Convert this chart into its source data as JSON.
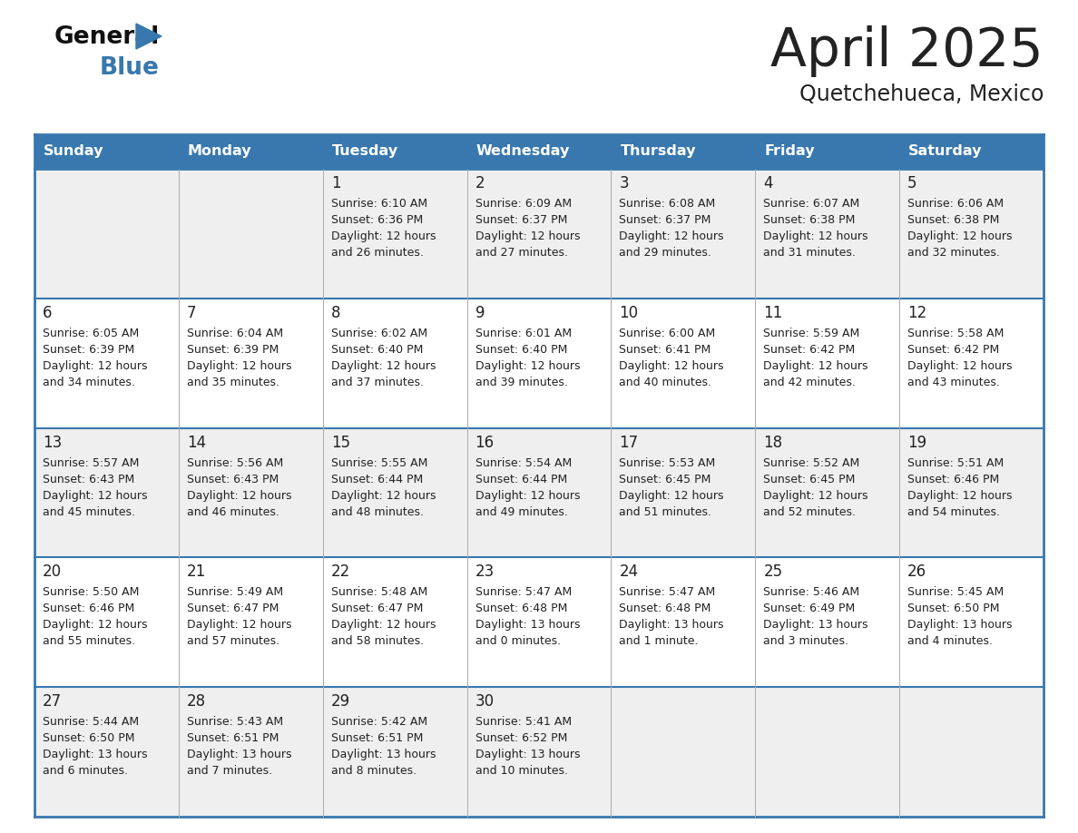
{
  "title": "April 2025",
  "subtitle": "Quetchehueca, Mexico",
  "header_bg": "#3878ae",
  "header_text_color": "#ffffff",
  "text_color": "#222222",
  "border_color": "#3878ae",
  "row_bg_odd": "#efefef",
  "row_bg_even": "#ffffff",
  "days_of_week": [
    "Sunday",
    "Monday",
    "Tuesday",
    "Wednesday",
    "Thursday",
    "Friday",
    "Saturday"
  ],
  "weeks": [
    [
      {
        "day": "",
        "lines": []
      },
      {
        "day": "",
        "lines": []
      },
      {
        "day": "1",
        "lines": [
          "Sunrise: 6:10 AM",
          "Sunset: 6:36 PM",
          "Daylight: 12 hours",
          "and 26 minutes."
        ]
      },
      {
        "day": "2",
        "lines": [
          "Sunrise: 6:09 AM",
          "Sunset: 6:37 PM",
          "Daylight: 12 hours",
          "and 27 minutes."
        ]
      },
      {
        "day": "3",
        "lines": [
          "Sunrise: 6:08 AM",
          "Sunset: 6:37 PM",
          "Daylight: 12 hours",
          "and 29 minutes."
        ]
      },
      {
        "day": "4",
        "lines": [
          "Sunrise: 6:07 AM",
          "Sunset: 6:38 PM",
          "Daylight: 12 hours",
          "and 31 minutes."
        ]
      },
      {
        "day": "5",
        "lines": [
          "Sunrise: 6:06 AM",
          "Sunset: 6:38 PM",
          "Daylight: 12 hours",
          "and 32 minutes."
        ]
      }
    ],
    [
      {
        "day": "6",
        "lines": [
          "Sunrise: 6:05 AM",
          "Sunset: 6:39 PM",
          "Daylight: 12 hours",
          "and 34 minutes."
        ]
      },
      {
        "day": "7",
        "lines": [
          "Sunrise: 6:04 AM",
          "Sunset: 6:39 PM",
          "Daylight: 12 hours",
          "and 35 minutes."
        ]
      },
      {
        "day": "8",
        "lines": [
          "Sunrise: 6:02 AM",
          "Sunset: 6:40 PM",
          "Daylight: 12 hours",
          "and 37 minutes."
        ]
      },
      {
        "day": "9",
        "lines": [
          "Sunrise: 6:01 AM",
          "Sunset: 6:40 PM",
          "Daylight: 12 hours",
          "and 39 minutes."
        ]
      },
      {
        "day": "10",
        "lines": [
          "Sunrise: 6:00 AM",
          "Sunset: 6:41 PM",
          "Daylight: 12 hours",
          "and 40 minutes."
        ]
      },
      {
        "day": "11",
        "lines": [
          "Sunrise: 5:59 AM",
          "Sunset: 6:42 PM",
          "Daylight: 12 hours",
          "and 42 minutes."
        ]
      },
      {
        "day": "12",
        "lines": [
          "Sunrise: 5:58 AM",
          "Sunset: 6:42 PM",
          "Daylight: 12 hours",
          "and 43 minutes."
        ]
      }
    ],
    [
      {
        "day": "13",
        "lines": [
          "Sunrise: 5:57 AM",
          "Sunset: 6:43 PM",
          "Daylight: 12 hours",
          "and 45 minutes."
        ]
      },
      {
        "day": "14",
        "lines": [
          "Sunrise: 5:56 AM",
          "Sunset: 6:43 PM",
          "Daylight: 12 hours",
          "and 46 minutes."
        ]
      },
      {
        "day": "15",
        "lines": [
          "Sunrise: 5:55 AM",
          "Sunset: 6:44 PM",
          "Daylight: 12 hours",
          "and 48 minutes."
        ]
      },
      {
        "day": "16",
        "lines": [
          "Sunrise: 5:54 AM",
          "Sunset: 6:44 PM",
          "Daylight: 12 hours",
          "and 49 minutes."
        ]
      },
      {
        "day": "17",
        "lines": [
          "Sunrise: 5:53 AM",
          "Sunset: 6:45 PM",
          "Daylight: 12 hours",
          "and 51 minutes."
        ]
      },
      {
        "day": "18",
        "lines": [
          "Sunrise: 5:52 AM",
          "Sunset: 6:45 PM",
          "Daylight: 12 hours",
          "and 52 minutes."
        ]
      },
      {
        "day": "19",
        "lines": [
          "Sunrise: 5:51 AM",
          "Sunset: 6:46 PM",
          "Daylight: 12 hours",
          "and 54 minutes."
        ]
      }
    ],
    [
      {
        "day": "20",
        "lines": [
          "Sunrise: 5:50 AM",
          "Sunset: 6:46 PM",
          "Daylight: 12 hours",
          "and 55 minutes."
        ]
      },
      {
        "day": "21",
        "lines": [
          "Sunrise: 5:49 AM",
          "Sunset: 6:47 PM",
          "Daylight: 12 hours",
          "and 57 minutes."
        ]
      },
      {
        "day": "22",
        "lines": [
          "Sunrise: 5:48 AM",
          "Sunset: 6:47 PM",
          "Daylight: 12 hours",
          "and 58 minutes."
        ]
      },
      {
        "day": "23",
        "lines": [
          "Sunrise: 5:47 AM",
          "Sunset: 6:48 PM",
          "Daylight: 13 hours",
          "and 0 minutes."
        ]
      },
      {
        "day": "24",
        "lines": [
          "Sunrise: 5:47 AM",
          "Sunset: 6:48 PM",
          "Daylight: 13 hours",
          "and 1 minute."
        ]
      },
      {
        "day": "25",
        "lines": [
          "Sunrise: 5:46 AM",
          "Sunset: 6:49 PM",
          "Daylight: 13 hours",
          "and 3 minutes."
        ]
      },
      {
        "day": "26",
        "lines": [
          "Sunrise: 5:45 AM",
          "Sunset: 6:50 PM",
          "Daylight: 13 hours",
          "and 4 minutes."
        ]
      }
    ],
    [
      {
        "day": "27",
        "lines": [
          "Sunrise: 5:44 AM",
          "Sunset: 6:50 PM",
          "Daylight: 13 hours",
          "and 6 minutes."
        ]
      },
      {
        "day": "28",
        "lines": [
          "Sunrise: 5:43 AM",
          "Sunset: 6:51 PM",
          "Daylight: 13 hours",
          "and 7 minutes."
        ]
      },
      {
        "day": "29",
        "lines": [
          "Sunrise: 5:42 AM",
          "Sunset: 6:51 PM",
          "Daylight: 13 hours",
          "and 8 minutes."
        ]
      },
      {
        "day": "30",
        "lines": [
          "Sunrise: 5:41 AM",
          "Sunset: 6:52 PM",
          "Daylight: 13 hours",
          "and 10 minutes."
        ]
      },
      {
        "day": "",
        "lines": []
      },
      {
        "day": "",
        "lines": []
      },
      {
        "day": "",
        "lines": []
      }
    ]
  ]
}
